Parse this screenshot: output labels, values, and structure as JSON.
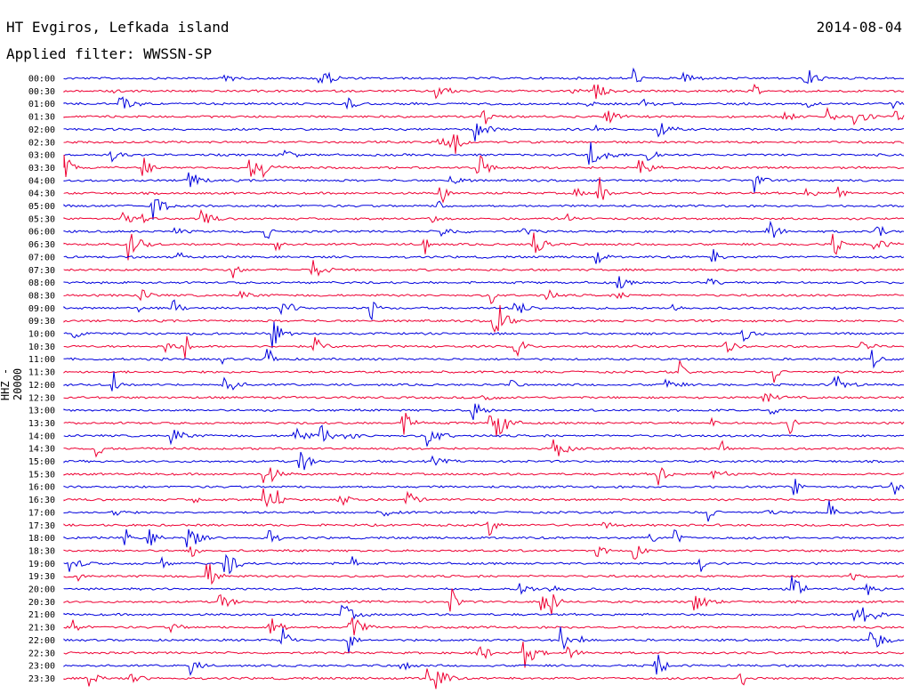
{
  "header": {
    "station": "HT Evgiros, Lefkada island",
    "filter": "Applied filter: WWSSN-SP",
    "date": "2014-08-04"
  },
  "chart_data": {
    "type": "line",
    "title": "HT Evgiros, Lefkada island",
    "subtitle": "Applied filter: WWSSN-SP",
    "ylabel": "HHZ - 20000",
    "colors": {
      "blue": "#0000dd",
      "red": "#ee0033"
    },
    "rows": [
      "00:00",
      "00:30",
      "01:00",
      "01:30",
      "02:00",
      "02:30",
      "03:00",
      "03:30",
      "04:00",
      "04:30",
      "05:00",
      "05:30",
      "06:00",
      "06:30",
      "07:00",
      "07:30",
      "08:00",
      "08:30",
      "09:00",
      "09:30",
      "10:00",
      "10:30",
      "11:00",
      "11:30",
      "12:00",
      "12:30",
      "13:00",
      "13:30",
      "14:00",
      "14:30",
      "15:00",
      "15:30",
      "16:00",
      "16:30",
      "17:00",
      "17:30",
      "18:00",
      "18:30",
      "19:00",
      "19:30",
      "20:00",
      "20:30",
      "21:00",
      "21:30",
      "22:00",
      "22:30",
      "23:00",
      "23:30"
    ],
    "row_colors": [
      "blue",
      "red"
    ]
  }
}
